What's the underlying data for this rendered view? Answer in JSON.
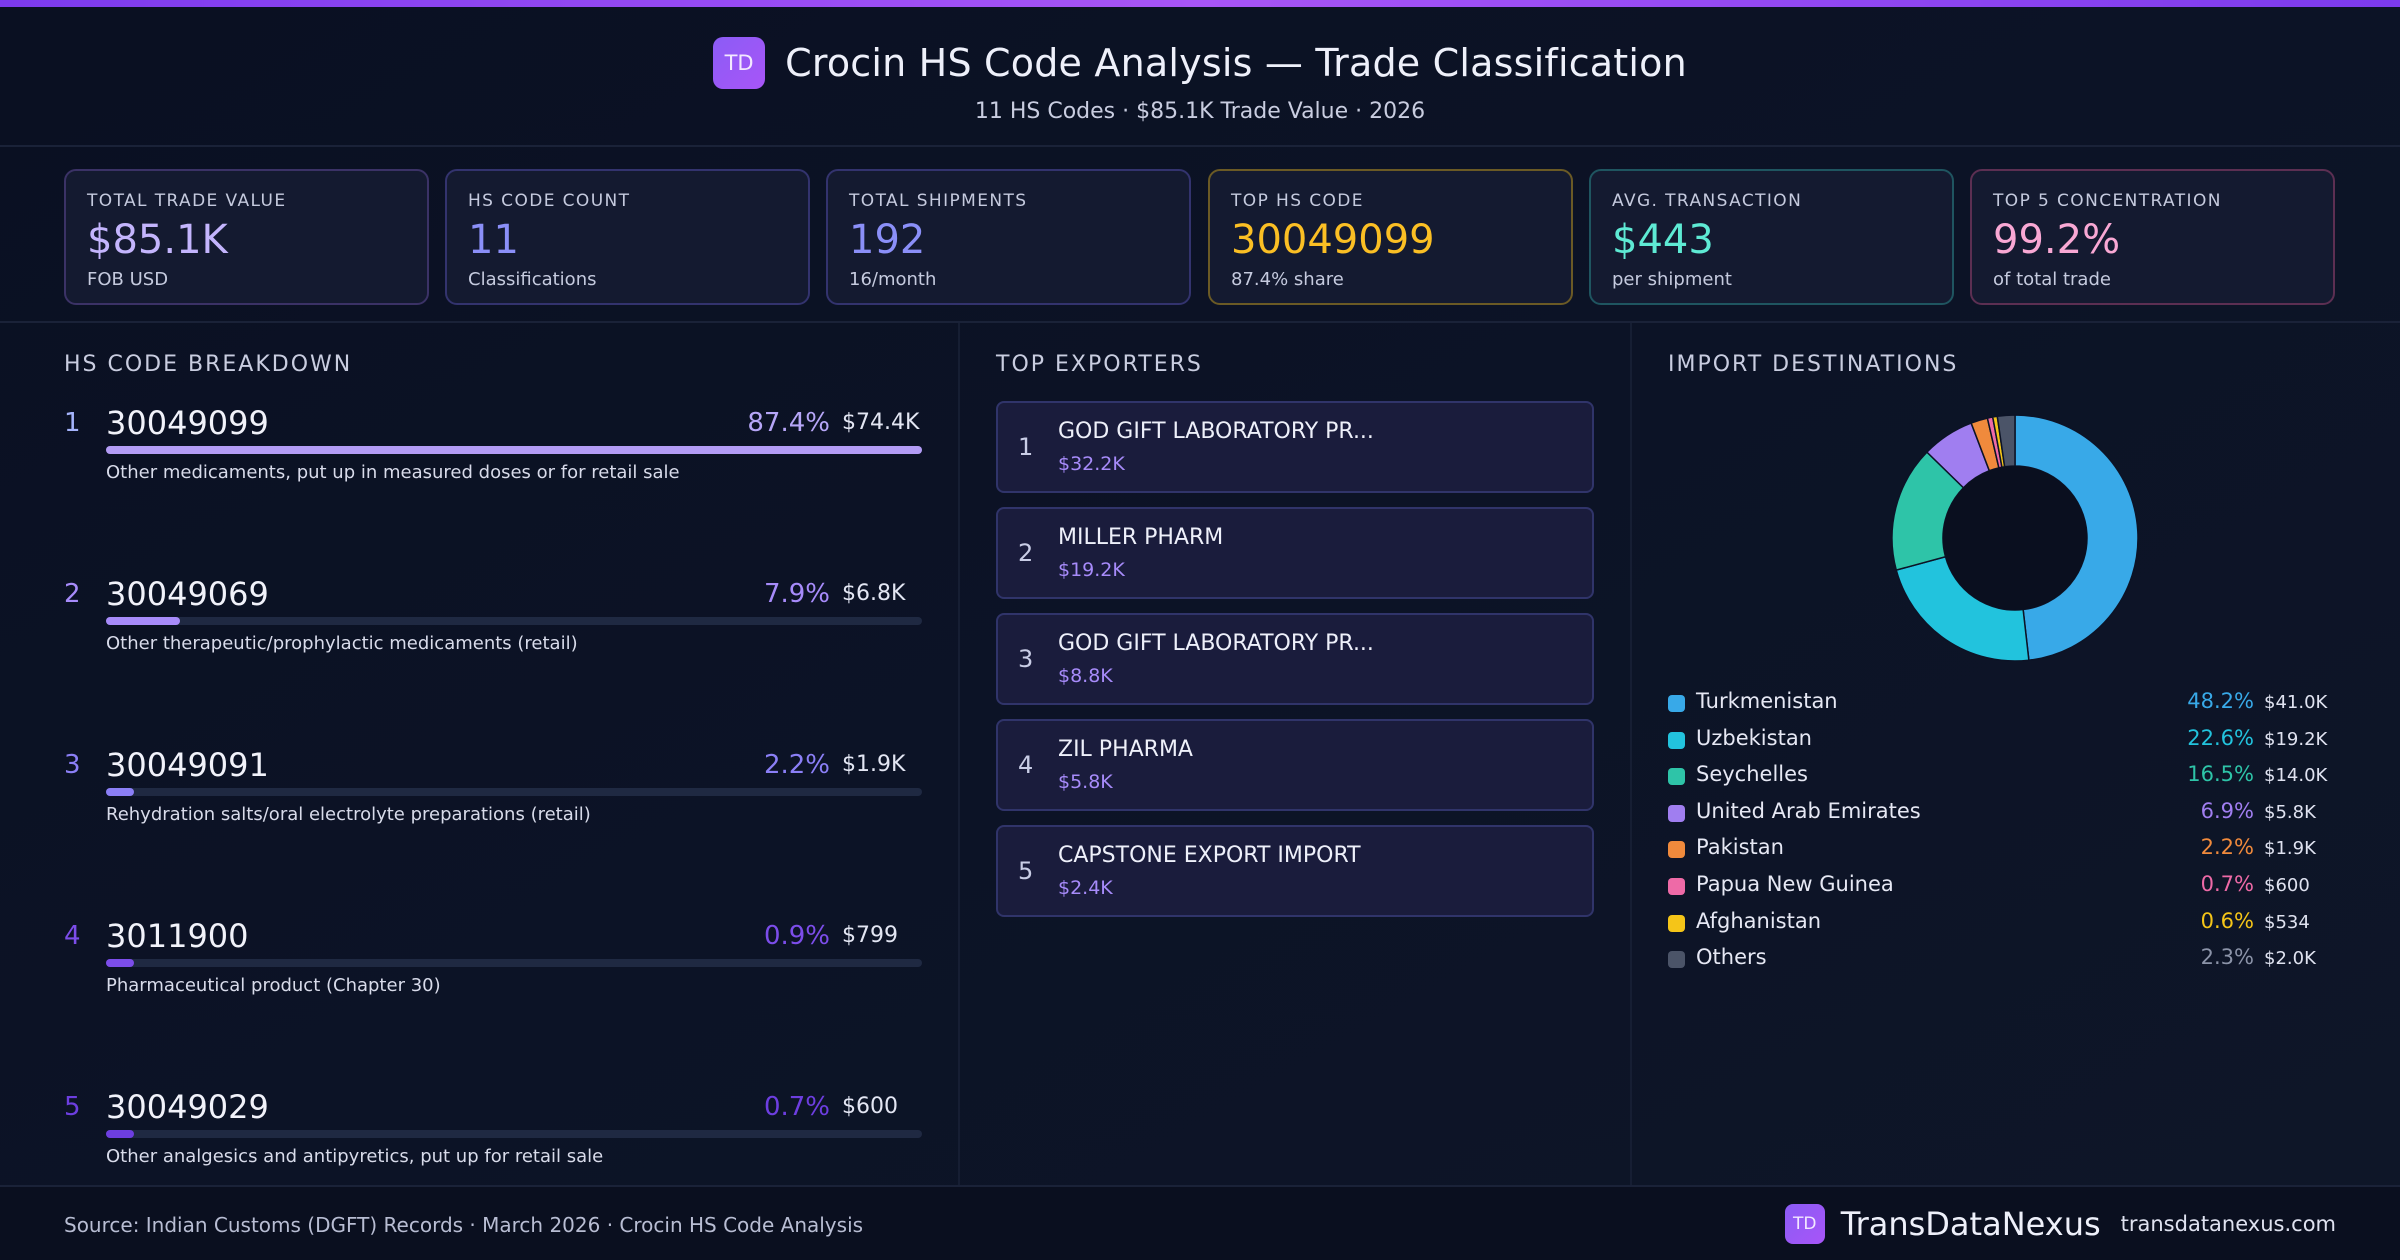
{
  "header": {
    "logo_text": "TD",
    "title": "Crocin HS Code Analysis — Trade Classification",
    "subtitle": "11 HS Codes · $85.1K Trade Value · 2026"
  },
  "kpis": [
    {
      "label": "TOTAL TRADE VALUE",
      "value": "$85.1K",
      "sub": "FOB USD",
      "color": "#c4b5fd",
      "border": "#3b3266"
    },
    {
      "label": "HS CODE COUNT",
      "value": "11",
      "sub": "Classifications",
      "color": "#8b8ff8",
      "border": "#33336e"
    },
    {
      "label": "TOTAL SHIPMENTS",
      "value": "192",
      "sub": "16/month",
      "color": "#8b8ff8",
      "border": "#33336e"
    },
    {
      "label": "TOP HS CODE",
      "value": "30049099",
      "sub": "87.4% share",
      "color": "#fbbf24",
      "border": "#6b5a25"
    },
    {
      "label": "AVG. TRANSACTION",
      "value": "$443",
      "sub": "per shipment",
      "color": "#5eead4",
      "border": "#1f5560"
    },
    {
      "label": "TOP 5 CONCENTRATION",
      "value": "99.2%",
      "sub": "of total trade",
      "color": "#f9a8d4",
      "border": "#5c2f52"
    }
  ],
  "hs_breakdown": {
    "title": "HS CODE BREAKDOWN",
    "items": [
      {
        "rank": "1",
        "code": "30049099",
        "pct": "87.4%",
        "value": "$74.4K",
        "share": 0.874,
        "desc": "Other medicaments, put up in measured doses or for retail sale",
        "color": "#b39cf5"
      },
      {
        "rank": "2",
        "code": "30049069",
        "pct": "7.9%",
        "value": "$6.8K",
        "share": 0.079,
        "desc": "Other therapeutic/prophylactic medicaments (retail)",
        "color": "#a78bfa"
      },
      {
        "rank": "3",
        "code": "30049091",
        "pct": "2.2%",
        "value": "$1.9K",
        "share": 0.022,
        "desc": "Rehydration salts/oral electrolyte preparations (retail)",
        "color": "#8b7ff6"
      },
      {
        "rank": "4",
        "code": "3011900",
        "pct": "0.9%",
        "value": "$799",
        "share": 0.009,
        "desc": "Pharmaceutical product (Chapter 30)",
        "color": "#7c4dea"
      },
      {
        "rank": "5",
        "code": "30049029",
        "pct": "0.7%",
        "value": "$600",
        "share": 0.007,
        "desc": "Other analgesics and antipyretics, put up for retail sale",
        "color": "#6d3ee0"
      }
    ]
  },
  "exporters": {
    "title": "TOP EXPORTERS",
    "items": [
      {
        "rank": "1",
        "name": "GOD GIFT LABORATORY PR...",
        "value": "$32.2K"
      },
      {
        "rank": "2",
        "name": "MILLER PHARM",
        "value": "$19.2K"
      },
      {
        "rank": "3",
        "name": "GOD GIFT LABORATORY PR...",
        "value": "$8.8K"
      },
      {
        "rank": "4",
        "name": "ZIL PHARMA",
        "value": "$5.8K"
      },
      {
        "rank": "5",
        "name": "CAPSTONE EXPORT IMPORT",
        "value": "$2.4K"
      }
    ]
  },
  "destinations": {
    "title": "IMPORT DESTINATIONS",
    "items": [
      {
        "name": "Turkmenistan",
        "pct": "48.2%",
        "value": "$41.0K",
        "color": "#38a9e8"
      },
      {
        "name": "Uzbekistan",
        "pct": "22.6%",
        "value": "$19.2K",
        "color": "#22c3dd"
      },
      {
        "name": "Seychelles",
        "pct": "16.5%",
        "value": "$14.0K",
        "color": "#2ec4a8"
      },
      {
        "name": "United Arab Emirates",
        "pct": "6.9%",
        "value": "$5.8K",
        "color": "#a07ef0"
      },
      {
        "name": "Pakistan",
        "pct": "2.2%",
        "value": "$1.9K",
        "color": "#f08a3c"
      },
      {
        "name": "Papua New Guinea",
        "pct": "0.7%",
        "value": "$600",
        "color": "#ee6aa7"
      },
      {
        "name": "Afghanistan",
        "pct": "0.6%",
        "value": "$534",
        "color": "#f5c518"
      },
      {
        "name": "Others",
        "pct": "2.3%",
        "value": "$2.0K",
        "color": "#4b5468"
      }
    ]
  },
  "chart_data": [
    {
      "type": "bar",
      "title": "HS CODE BREAKDOWN",
      "categories": [
        "30049099",
        "30049069",
        "30049091",
        "3011900",
        "30049029"
      ],
      "values": [
        87.4,
        7.9,
        2.2,
        0.9,
        0.7
      ]
    },
    {
      "type": "pie",
      "title": "IMPORT DESTINATIONS",
      "categories": [
        "Turkmenistan",
        "Uzbekistan",
        "Seychelles",
        "United Arab Emirates",
        "Pakistan",
        "Papua New Guinea",
        "Afghanistan",
        "Others"
      ],
      "values": [
        48.2,
        22.6,
        16.5,
        6.9,
        2.2,
        0.7,
        0.6,
        2.3
      ]
    }
  ],
  "footer": {
    "source": "Source: Indian Customs (DGFT) Records · March 2026 · Crocin HS Code Analysis",
    "logo_text": "TD",
    "brand": "TransDataNexus",
    "url": "transdatanexus.com"
  }
}
